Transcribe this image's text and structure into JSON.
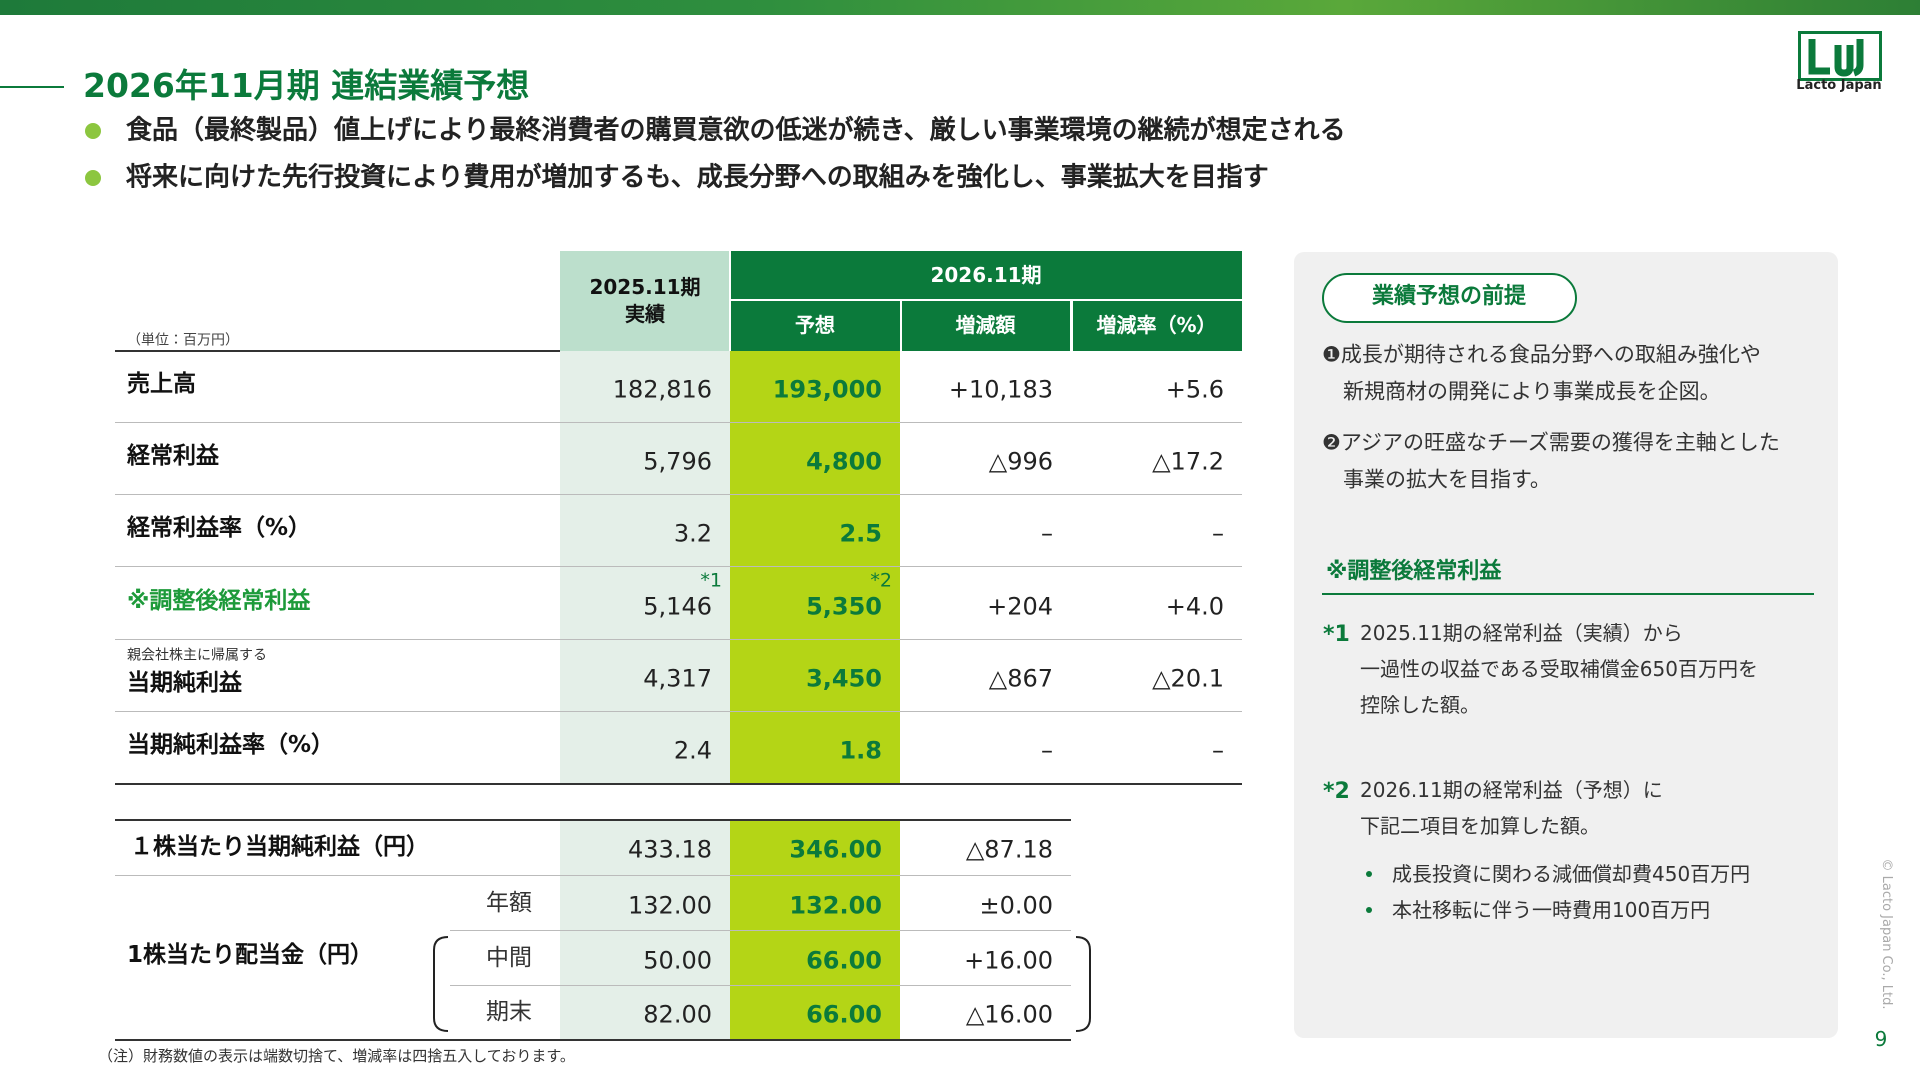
{
  "header": {
    "title": "2026年11月期 連結業績予想",
    "logo": "Lacto Japan",
    "bullets": [
      "食品（最終製品）値上げにより最終消費者の購買意欲の低迷が続き、厳しい事業環境の継続が想定される",
      "将来に向けた先行投資により費用が増加するも、成長分野への取組みを強化し、事業拡大を目指す"
    ]
  },
  "table": {
    "unit": "（単位：百万円）",
    "prev_header": [
      "2025.11期",
      "実績"
    ],
    "period_header": "2026.11期",
    "sub_headers": [
      "予想",
      "増減額",
      "増減率（%）"
    ],
    "rows": [
      {
        "label": "売上高",
        "values": [
          "182,816",
          "193,000",
          "+10,183",
          "+5.6"
        ]
      },
      {
        "label": "経常利益",
        "values": [
          "5,796",
          "4,800",
          "△996",
          "△17.2"
        ]
      },
      {
        "label": "経常利益率（%）",
        "values": [
          "3.2",
          "2.5",
          "–",
          "–"
        ]
      },
      {
        "label": "※調整後経常利益",
        "notes": [
          "*1",
          "*2"
        ],
        "values": [
          "5,146",
          "5,350",
          "+204",
          "+4.0"
        ]
      },
      {
        "prefix": "親会社株主に帰属する",
        "label": "当期純利益",
        "values": [
          "4,317",
          "3,450",
          "△867",
          "△20.1"
        ]
      },
      {
        "label": "当期純利益率（%）",
        "values": [
          "2.4",
          "1.8",
          "–",
          "–"
        ]
      }
    ],
    "eps": {
      "label": "１株当たり当期純利益（円）",
      "values": [
        "433.18",
        "346.00",
        "△87.18"
      ]
    },
    "dividend": {
      "label": "1株当たり配当金（円）",
      "rows": [
        {
          "label": "年額",
          "values": [
            "132.00",
            "132.00",
            "±0.00"
          ]
        },
        {
          "label": "中間",
          "values": [
            "50.00",
            "66.00",
            "+16.00"
          ]
        },
        {
          "label": "期末",
          "values": [
            "82.00",
            "66.00",
            "△16.00"
          ]
        }
      ]
    },
    "footnote": "（注）財務数値の表示は端数切捨て、増減率は四捨五入しております。"
  },
  "side_panel": {
    "title": "業績予想の前提",
    "items": [
      [
        "❶成長が期待される食品分野への取組み強化や",
        "新規商材の開発により事業成長を企図。"
      ],
      [
        "❷アジアの旺盛なチーズ需要の獲得を主軸とした",
        "事業の拡大を目指す。"
      ]
    ],
    "adjusted": {
      "heading": "※調整後経常利益",
      "notes": [
        {
          "mark": "*1",
          "lines": [
            "2025.11期の経常利益（実績）から",
            "一過性の収益である受取補償金650百万円を",
            "控除した額。"
          ]
        },
        {
          "mark": "*2",
          "lines": [
            "2026.11期の経常利益（予想）に",
            "下記二項目を加算した額。"
          ],
          "bullets": [
            "成長投資に関わる減価償却費450百万円",
            "本社移転に伴う一時費用100百万円"
          ]
        }
      ]
    }
  },
  "footer": {
    "copyright": "© Lacto Japan Co., Ltd.",
    "page": "9"
  }
}
